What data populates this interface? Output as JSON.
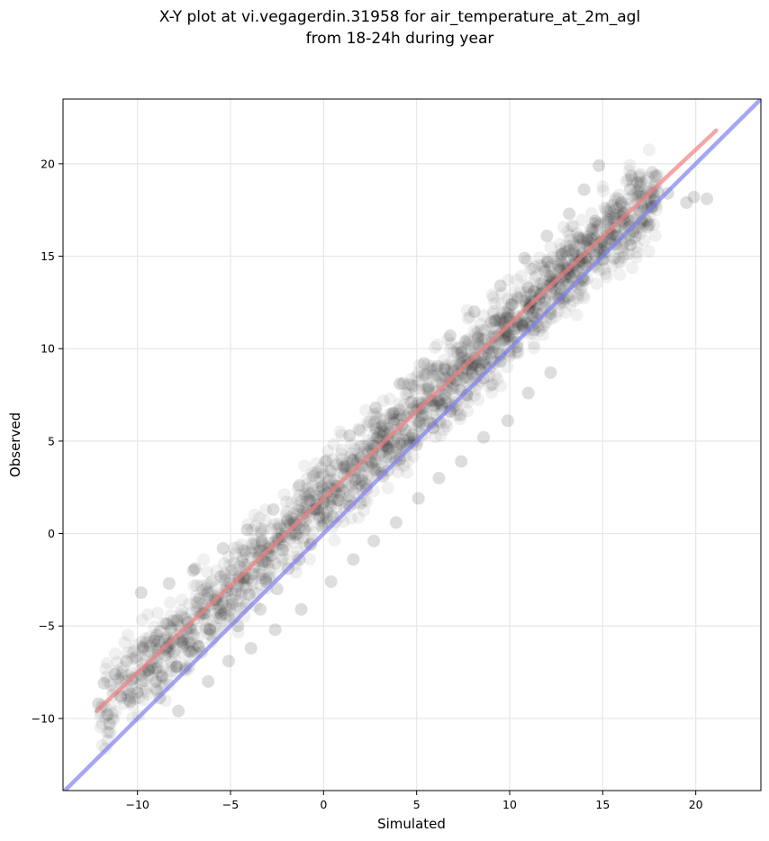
{
  "chart_data": {
    "type": "scatter",
    "title": "X-Y plot at vi.vegagerdin.31958 for air_temperature_at_2m_agl",
    "subtitle": "from 18-24h during year",
    "xlabel": "Simulated",
    "ylabel": "Observed",
    "xlim": [
      -14.0,
      23.5
    ],
    "ylim": [
      -13.9,
      23.5
    ],
    "xticks": [
      -10,
      -5,
      0,
      5,
      10,
      15,
      20
    ],
    "yticks": [
      -10,
      -5,
      0,
      5,
      10,
      15,
      20
    ],
    "xtick_labels": [
      "−10",
      "−5",
      "0",
      "5",
      "10",
      "15",
      "20"
    ],
    "ytick_labels": [
      "−10",
      "−5",
      "0",
      "5",
      "10",
      "15",
      "20"
    ],
    "grid": true,
    "legend": "none",
    "point_color": "#000000",
    "point_alpha": 0.06,
    "lines": [
      {
        "kind": "regression",
        "color": "#f08080",
        "x": [
          -12.2,
          21.1
        ],
        "y": [
          -9.6,
          21.8
        ]
      },
      {
        "kind": "identity",
        "color": "#8080f0",
        "x": [
          -14.0,
          23.5
        ],
        "y": [
          -14.0,
          23.5
        ]
      }
    ],
    "points": [
      [
        -12.1,
        -9.2
      ],
      [
        -11.8,
        -8.1
      ],
      [
        -11.5,
        -10.3
      ],
      [
        -11.2,
        -7.6
      ],
      [
        -10.9,
        -8.8
      ],
      [
        -10.6,
        -6.9
      ],
      [
        -10.3,
        -7.9
      ],
      [
        -10.0,
        -8.6
      ],
      [
        -9.7,
        -6.2
      ],
      [
        -9.4,
        -7.4
      ],
      [
        -9.1,
        -5.8
      ],
      [
        -8.8,
        -8.9
      ],
      [
        -8.5,
        -6.6
      ],
      [
        -8.2,
        -5.1
      ],
      [
        -7.9,
        -7.2
      ],
      [
        -7.6,
        -5.9
      ],
      [
        -7.3,
        -4.8
      ],
      [
        -7.0,
        -2.0
      ],
      [
        -6.7,
        -6.1
      ],
      [
        -6.4,
        -4.3
      ],
      [
        -6.1,
        -5.2
      ],
      [
        -5.8,
        -3.6
      ],
      [
        -5.5,
        -4.4
      ],
      [
        -5.2,
        -2.9
      ],
      [
        -4.9,
        -3.8
      ],
      [
        -4.6,
        -5.0
      ],
      [
        -4.3,
        -2.4
      ],
      [
        -4.0,
        -3.3
      ],
      [
        -3.7,
        -1.8
      ],
      [
        -3.4,
        -4.1
      ],
      [
        -3.1,
        -2.6
      ],
      [
        -2.8,
        -1.2
      ],
      [
        -2.5,
        -3.0
      ],
      [
        -2.2,
        -0.9
      ],
      [
        -1.9,
        -1.9
      ],
      [
        -1.6,
        0.6
      ],
      [
        -1.3,
        -1.4
      ],
      [
        -1.0,
        0.2
      ],
      [
        -0.7,
        -0.6
      ],
      [
        -0.4,
        1.3
      ],
      [
        -0.1,
        0.4
      ],
      [
        0.2,
        2.2
      ],
      [
        0.5,
        0.9
      ],
      [
        0.8,
        1.8
      ],
      [
        1.1,
        3.2
      ],
      [
        1.4,
        1.5
      ],
      [
        1.7,
        2.9
      ],
      [
        2.0,
        4.1
      ],
      [
        2.3,
        2.4
      ],
      [
        2.6,
        3.8
      ],
      [
        2.9,
        5.2
      ],
      [
        3.2,
        3.1
      ],
      [
        3.5,
        4.6
      ],
      [
        3.8,
        6.0
      ],
      [
        4.1,
        4.0
      ],
      [
        4.4,
        5.6
      ],
      [
        4.7,
        7.1
      ],
      [
        5.0,
        4.8
      ],
      [
        5.3,
        6.4
      ],
      [
        5.6,
        7.8
      ],
      [
        5.9,
        5.7
      ],
      [
        6.2,
        7.2
      ],
      [
        6.5,
        8.9
      ],
      [
        6.8,
        6.6
      ],
      [
        7.1,
        8.3
      ],
      [
        7.4,
        9.8
      ],
      [
        7.7,
        7.5
      ],
      [
        8.0,
        9.1
      ],
      [
        8.3,
        10.6
      ],
      [
        8.6,
        8.4
      ],
      [
        8.9,
        10.0
      ],
      [
        9.2,
        11.5
      ],
      [
        9.5,
        9.3
      ],
      [
        9.8,
        10.9
      ],
      [
        10.1,
        12.4
      ],
      [
        10.4,
        10.1
      ],
      [
        10.7,
        11.8
      ],
      [
        11.0,
        13.3
      ],
      [
        11.3,
        11.0
      ],
      [
        11.6,
        12.7
      ],
      [
        11.9,
        14.2
      ],
      [
        12.2,
        11.9
      ],
      [
        12.5,
        13.6
      ],
      [
        12.8,
        15.1
      ],
      [
        13.1,
        12.8
      ],
      [
        13.4,
        14.5
      ],
      [
        13.7,
        16.0
      ],
      [
        14.0,
        13.7
      ],
      [
        14.3,
        15.4
      ],
      [
        14.6,
        16.9
      ],
      [
        15.0,
        14.8
      ],
      [
        15.5,
        16.2
      ],
      [
        16.0,
        17.9
      ],
      [
        16.5,
        15.6
      ],
      [
        17.0,
        18.8
      ],
      [
        17.5,
        16.7
      ],
      [
        18.5,
        18.4
      ],
      [
        19.5,
        17.9
      ],
      [
        19.9,
        18.2
      ],
      [
        20.6,
        18.1
      ],
      [
        -11.6,
        -9.8
      ],
      [
        -10.4,
        -9.1
      ],
      [
        -9.0,
        -8.0
      ],
      [
        -7.8,
        -9.6
      ],
      [
        -6.2,
        -8.0
      ],
      [
        -5.1,
        -6.9
      ],
      [
        -3.9,
        -6.2
      ],
      [
        -2.6,
        -5.2
      ],
      [
        -1.2,
        -4.1
      ],
      [
        0.4,
        -2.6
      ],
      [
        1.6,
        -1.4
      ],
      [
        2.7,
        -0.4
      ],
      [
        3.9,
        0.6
      ],
      [
        5.1,
        1.9
      ],
      [
        6.2,
        3.0
      ],
      [
        7.4,
        3.9
      ],
      [
        8.6,
        5.2
      ],
      [
        9.9,
        6.1
      ],
      [
        11.0,
        7.6
      ],
      [
        12.2,
        8.7
      ],
      [
        -9.8,
        -3.2
      ],
      [
        -8.3,
        -2.7
      ],
      [
        -6.9,
        -1.9
      ],
      [
        -5.4,
        -0.8
      ],
      [
        -4.1,
        0.2
      ],
      [
        -2.7,
        1.3
      ],
      [
        -1.3,
        2.6
      ],
      [
        0.1,
        3.9
      ],
      [
        1.4,
        5.3
      ],
      [
        2.8,
        6.8
      ],
      [
        4.1,
        8.1
      ],
      [
        5.4,
        9.2
      ],
      [
        6.8,
        10.7
      ],
      [
        8.1,
        12.0
      ],
      [
        9.5,
        13.4
      ],
      [
        10.8,
        14.9
      ],
      [
        12.0,
        16.1
      ],
      [
        13.2,
        17.3
      ],
      [
        14.0,
        18.6
      ],
      [
        14.8,
        19.9
      ]
    ]
  }
}
